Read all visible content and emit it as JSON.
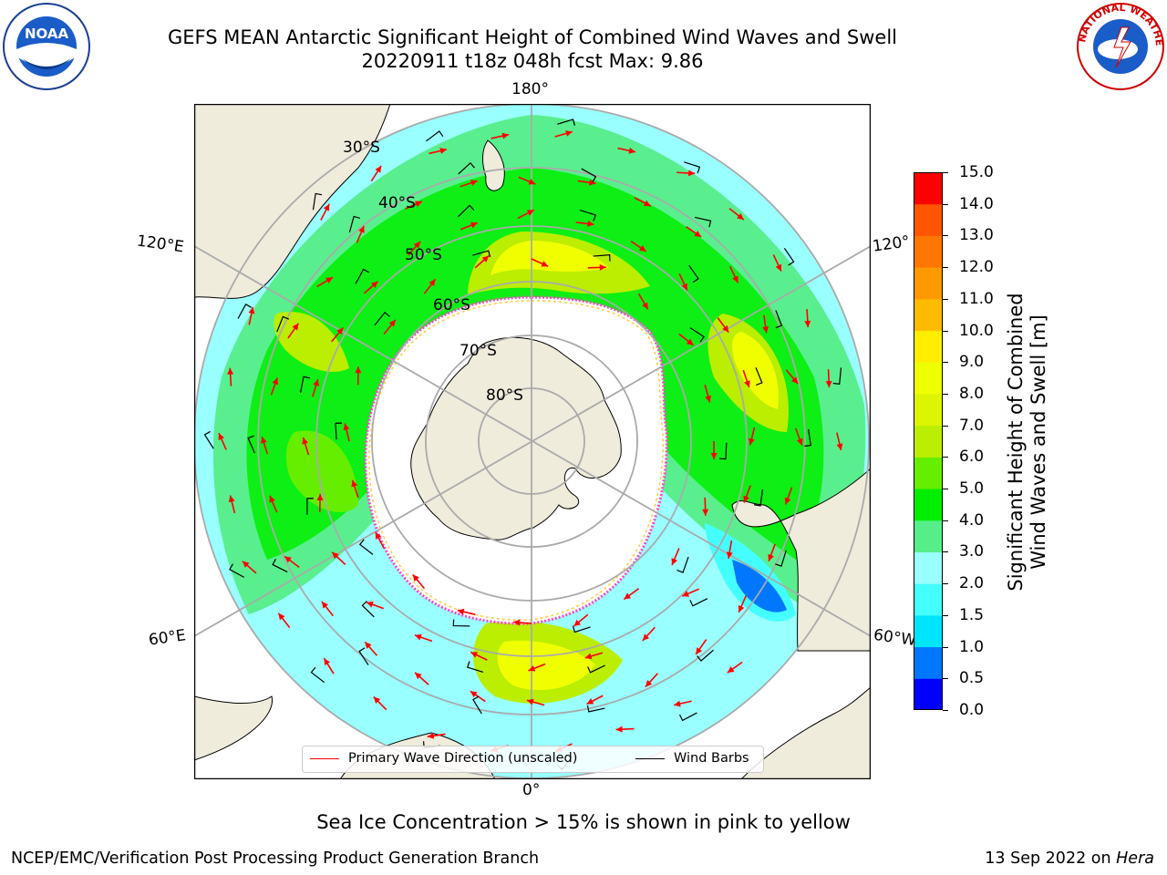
{
  "title": {
    "line1": "GEFS MEAN Antarctic Significant Height of Combined Wind Waves and Swell",
    "line2": "20220911 t18z 048h fcst   Max: 9.86"
  },
  "logos": {
    "left": {
      "name": "noaa-logo",
      "text": "NOAA"
    },
    "right": {
      "name": "nws-logo",
      "text": "NATIONAL WEATHER SERVICE"
    }
  },
  "map": {
    "projection": "south-polar-stereographic",
    "lon_labels": {
      "top": "180°",
      "bottom": "0°",
      "left_upper": "120°E",
      "left_lower": "60°E",
      "right_upper": "120°",
      "right_lower": "60°W"
    },
    "lat_labels": [
      "30°S",
      "40°S",
      "50°S",
      "60°S",
      "70°S",
      "80°S"
    ],
    "colors": {
      "land": "#efecdc",
      "sea_ice_free": "#ffffff",
      "ice_edge_pink": "#ff44cc",
      "ice_edge_yellow": "#ffcc33",
      "gridline": "#aaaaaa",
      "arrow": "#ff0000",
      "barb": "#000000"
    }
  },
  "colorbar": {
    "label_line1": "Significant Height of Combined",
    "label_line2": "Wind Waves and Swell [m]",
    "ticks": [
      "15.0",
      "14.0",
      "13.0",
      "12.0",
      "11.0",
      "10.0",
      "9.0",
      "8.0",
      "7.0",
      "6.0",
      "5.0",
      "4.0",
      "3.0",
      "2.0",
      "1.5",
      "1.0",
      "0.5",
      "0.0"
    ],
    "bins": [
      {
        "from": 0.0,
        "to": 0.5,
        "color": "#0000ff"
      },
      {
        "from": 0.5,
        "to": 1.0,
        "color": "#0077ff"
      },
      {
        "from": 1.0,
        "to": 1.5,
        "color": "#00e5ff"
      },
      {
        "from": 1.5,
        "to": 2.0,
        "color": "#44ffff"
      },
      {
        "from": 2.0,
        "to": 3.0,
        "color": "#99ffff"
      },
      {
        "from": 3.0,
        "to": 4.0,
        "color": "#55ee88"
      },
      {
        "from": 4.0,
        "to": 5.0,
        "color": "#00ee00"
      },
      {
        "from": 5.0,
        "to": 6.0,
        "color": "#66ee00"
      },
      {
        "from": 6.0,
        "to": 7.0,
        "color": "#bbee00"
      },
      {
        "from": 7.0,
        "to": 8.0,
        "color": "#ddf500"
      },
      {
        "from": 8.0,
        "to": 9.0,
        "color": "#f0ff00"
      },
      {
        "from": 9.0,
        "to": 10.0,
        "color": "#ffee00"
      },
      {
        "from": 10.0,
        "to": 11.0,
        "color": "#ffbb00"
      },
      {
        "from": 11.0,
        "to": 12.0,
        "color": "#ff9900"
      },
      {
        "from": 12.0,
        "to": 13.0,
        "color": "#ff7700"
      },
      {
        "from": 13.0,
        "to": 14.0,
        "color": "#ff5500"
      },
      {
        "from": 14.0,
        "to": 15.0,
        "color": "#ff0000"
      }
    ]
  },
  "legend": {
    "items": [
      {
        "label": "Primary Wave Direction (unscaled)",
        "color": "#ff0000"
      },
      {
        "label": "Wind Barbs",
        "color": "#000000"
      }
    ]
  },
  "note": "Sea Ice Concentration > 15% is shown in pink to yellow",
  "footer": {
    "left": "NCEP/EMC/Verification Post Processing Product Generation Branch",
    "right_date": "13 Sep 2022 on ",
    "right_host": "Hera"
  }
}
